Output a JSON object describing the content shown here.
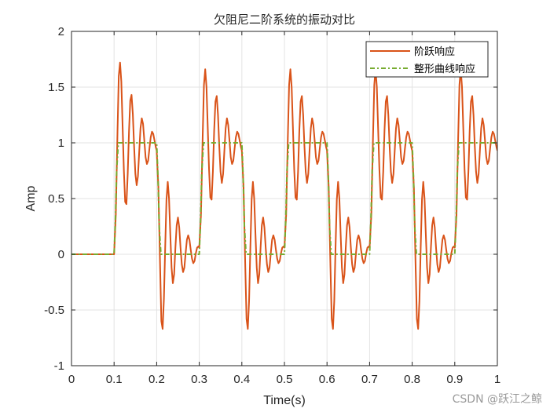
{
  "chart_data": {
    "type": "line",
    "title": "欠阻尼二阶系统的振动对比",
    "xlabel": "Time(s)",
    "ylabel": "Amp",
    "xlim": [
      0,
      1
    ],
    "ylim": [
      -1,
      2
    ],
    "xticks": [
      "0",
      "0.1",
      "0.2",
      "0.3",
      "0.4",
      "0.5",
      "0.6",
      "0.7",
      "0.8",
      "0.9",
      "1"
    ],
    "yticks": [
      "-1",
      "-0.5",
      "0",
      "0.5",
      "1",
      "1.5",
      "2"
    ],
    "grid": true,
    "legend_position": "top-right",
    "series": [
      {
        "name": "阶跃响应",
        "color": "#D95319",
        "style": "solid",
        "x": [
          0,
          0.1,
          0.104,
          0.108,
          0.111,
          0.114,
          0.117,
          0.12,
          0.123,
          0.126,
          0.129,
          0.132,
          0.135,
          0.138,
          0.141,
          0.144,
          0.147,
          0.15,
          0.153,
          0.156,
          0.159,
          0.162,
          0.165,
          0.168,
          0.171,
          0.174,
          0.177,
          0.18,
          0.183,
          0.186,
          0.189,
          0.192,
          0.195,
          0.198,
          0.2,
          0.204,
          0.208,
          0.211,
          0.214,
          0.217,
          0.22,
          0.223,
          0.226,
          0.229,
          0.232,
          0.235,
          0.238,
          0.241,
          0.244,
          0.247,
          0.25,
          0.253,
          0.256,
          0.259,
          0.262,
          0.265,
          0.268,
          0.271,
          0.274,
          0.277,
          0.28,
          0.283,
          0.286,
          0.289,
          0.292,
          0.295,
          0.298,
          0.3,
          0.304,
          0.308,
          0.311,
          0.314,
          0.317,
          0.32,
          0.323,
          0.326,
          0.329,
          0.332,
          0.335,
          0.338,
          0.341,
          0.344,
          0.347,
          0.35,
          0.353,
          0.356,
          0.359,
          0.362,
          0.365,
          0.368,
          0.371,
          0.374,
          0.377,
          0.38,
          0.383,
          0.386,
          0.389,
          0.392,
          0.395,
          0.398,
          0.4,
          0.404,
          0.408,
          0.411,
          0.414,
          0.417,
          0.42,
          0.423,
          0.426,
          0.429,
          0.432,
          0.435,
          0.438,
          0.441,
          0.444,
          0.447,
          0.45,
          0.453,
          0.456,
          0.459,
          0.462,
          0.465,
          0.468,
          0.471,
          0.474,
          0.477,
          0.48,
          0.483,
          0.486,
          0.489,
          0.492,
          0.495,
          0.498,
          0.5,
          0.504,
          0.508,
          0.511,
          0.514,
          0.517,
          0.52,
          0.523,
          0.526,
          0.529,
          0.532,
          0.535,
          0.538,
          0.541,
          0.544,
          0.547,
          0.55,
          0.553,
          0.556,
          0.559,
          0.562,
          0.565,
          0.568,
          0.571,
          0.574,
          0.577,
          0.58,
          0.583,
          0.586,
          0.589,
          0.592,
          0.595,
          0.598,
          0.6,
          0.604,
          0.608,
          0.611,
          0.614,
          0.617,
          0.62,
          0.623,
          0.626,
          0.629,
          0.632,
          0.635,
          0.638,
          0.641,
          0.644,
          0.647,
          0.65,
          0.653,
          0.656,
          0.659,
          0.662,
          0.665,
          0.668,
          0.671,
          0.674,
          0.677,
          0.68,
          0.683,
          0.686,
          0.689,
          0.692,
          0.695,
          0.698,
          0.7,
          0.704,
          0.708,
          0.711,
          0.714,
          0.717,
          0.72,
          0.723,
          0.726,
          0.729,
          0.732,
          0.735,
          0.738,
          0.741,
          0.744,
          0.747,
          0.75,
          0.753,
          0.756,
          0.759,
          0.762,
          0.765,
          0.768,
          0.771,
          0.774,
          0.777,
          0.78,
          0.783,
          0.786,
          0.789,
          0.792,
          0.795,
          0.798,
          0.8,
          0.804,
          0.808,
          0.811,
          0.814,
          0.817,
          0.82,
          0.823,
          0.826,
          0.829,
          0.832,
          0.835,
          0.838,
          0.841,
          0.844,
          0.847,
          0.85,
          0.853,
          0.856,
          0.859,
          0.862,
          0.865,
          0.868,
          0.871,
          0.874,
          0.877,
          0.88,
          0.883,
          0.886,
          0.889,
          0.892,
          0.895,
          0.898,
          0.9,
          0.904,
          0.908,
          0.911,
          0.914,
          0.917,
          0.92,
          0.923,
          0.926,
          0.929,
          0.932,
          0.935,
          0.938,
          0.941,
          0.944,
          0.947,
          0.95,
          0.953,
          0.956,
          0.959,
          0.962,
          0.965,
          0.968,
          0.971,
          0.974,
          0.977,
          0.98,
          0.983,
          0.986,
          0.989,
          0.992,
          0.995,
          0.998,
          1.0
        ],
        "y": [
          0,
          0,
          0.35,
          1.1,
          1.6,
          1.72,
          1.55,
          1.15,
          0.75,
          0.47,
          0.45,
          0.72,
          1.1,
          1.38,
          1.43,
          1.26,
          0.97,
          0.72,
          0.62,
          0.7,
          0.92,
          1.13,
          1.22,
          1.17,
          1.02,
          0.87,
          0.81,
          0.84,
          0.95,
          1.05,
          1.1,
          1.08,
          1.02,
          0.96,
          0.93,
          0.6,
          -0.1,
          -0.6,
          -0.67,
          -0.4,
          0.06,
          0.49,
          0.65,
          0.5,
          0.18,
          -0.12,
          -0.26,
          -0.18,
          0.06,
          0.26,
          0.33,
          0.24,
          0.06,
          -0.09,
          -0.16,
          -0.12,
          0.01,
          0.13,
          0.17,
          0.13,
          0.04,
          -0.04,
          -0.08,
          -0.06,
          0.01,
          0.06,
          0.07,
          0.06,
          0.35,
          1.05,
          1.52,
          1.66,
          1.5,
          1.13,
          0.76,
          0.51,
          0.49,
          0.74,
          1.11,
          1.37,
          1.42,
          1.25,
          0.97,
          0.74,
          0.64,
          0.72,
          0.93,
          1.13,
          1.22,
          1.16,
          1.02,
          0.87,
          0.81,
          0.84,
          0.95,
          1.05,
          1.1,
          1.08,
          1.02,
          0.96,
          0.93,
          0.6,
          -0.1,
          -0.58,
          -0.67,
          -0.42,
          0.06,
          0.49,
          0.65,
          0.5,
          0.18,
          -0.12,
          -0.26,
          -0.18,
          0.06,
          0.26,
          0.33,
          0.24,
          0.06,
          -0.09,
          -0.16,
          -0.12,
          0.01,
          0.13,
          0.17,
          0.13,
          0.04,
          -0.04,
          -0.08,
          -0.06,
          0.01,
          0.06,
          0.07,
          0.06,
          0.35,
          1.05,
          1.52,
          1.66,
          1.5,
          1.13,
          0.76,
          0.51,
          0.49,
          0.74,
          1.11,
          1.37,
          1.42,
          1.25,
          0.97,
          0.74,
          0.64,
          0.72,
          0.93,
          1.13,
          1.22,
          1.16,
          1.02,
          0.87,
          0.81,
          0.84,
          0.95,
          1.05,
          1.1,
          1.08,
          1.02,
          0.96,
          0.93,
          0.6,
          -0.1,
          -0.58,
          -0.67,
          -0.42,
          0.06,
          0.49,
          0.65,
          0.5,
          0.18,
          -0.12,
          -0.26,
          -0.18,
          0.06,
          0.26,
          0.33,
          0.24,
          0.06,
          -0.09,
          -0.16,
          -0.12,
          0.01,
          0.13,
          0.17,
          0.13,
          0.04,
          -0.04,
          -0.08,
          -0.06,
          0.01,
          0.06,
          0.07,
          0.06,
          0.35,
          1.05,
          1.52,
          1.66,
          1.5,
          1.13,
          0.76,
          0.51,
          0.49,
          0.74,
          1.11,
          1.37,
          1.42,
          1.25,
          0.97,
          0.74,
          0.64,
          0.72,
          0.93,
          1.13,
          1.22,
          1.16,
          1.02,
          0.87,
          0.81,
          0.84,
          0.95,
          1.05,
          1.1,
          1.08,
          1.02,
          0.96,
          0.93,
          0.6,
          -0.1,
          -0.58,
          -0.67,
          -0.42,
          0.06,
          0.49,
          0.65,
          0.5,
          0.18,
          -0.12,
          -0.26,
          -0.18,
          0.06,
          0.26,
          0.33,
          0.24,
          0.06,
          -0.09,
          -0.16,
          -0.12,
          0.01,
          0.13,
          0.17,
          0.13,
          0.04,
          -0.04,
          -0.08,
          -0.06,
          0.01,
          0.06,
          0.07,
          0.06,
          0.35,
          1.05,
          1.52,
          1.66,
          1.5,
          1.13,
          0.76,
          0.51,
          0.49,
          0.74,
          1.11,
          1.37,
          1.42,
          1.25,
          0.97,
          0.74,
          0.64,
          0.72,
          0.93,
          1.13,
          1.22,
          1.16,
          1.02,
          0.87,
          0.81,
          0.84,
          0.95,
          1.05,
          1.1,
          1.08,
          1.02,
          0.96,
          0.93
        ]
      },
      {
        "name": "整形曲线响应",
        "color": "#77AC30",
        "style": "dashed",
        "x": [
          0,
          0.1,
          0.103,
          0.106,
          0.11,
          0.2,
          0.203,
          0.206,
          0.21,
          0.3,
          0.303,
          0.306,
          0.31,
          0.4,
          0.403,
          0.406,
          0.41,
          0.5,
          0.503,
          0.506,
          0.51,
          0.6,
          0.603,
          0.606,
          0.61,
          0.7,
          0.703,
          0.706,
          0.71,
          0.8,
          0.803,
          0.806,
          0.81,
          0.9,
          0.903,
          0.906,
          0.91,
          1.0
        ],
        "y": [
          0,
          0,
          0.3,
          0.75,
          1.0,
          1.0,
          0.7,
          0.25,
          0,
          0,
          0.3,
          0.75,
          1.0,
          1.0,
          0.7,
          0.25,
          0,
          0,
          0.3,
          0.75,
          1.0,
          1.0,
          0.7,
          0.25,
          0,
          0,
          0.3,
          0.75,
          1.0,
          1.0,
          0.7,
          0.25,
          0,
          0,
          0.3,
          0.75,
          1.0,
          1.0
        ]
      }
    ]
  },
  "watermark": "CSDN @跃江之鲸"
}
